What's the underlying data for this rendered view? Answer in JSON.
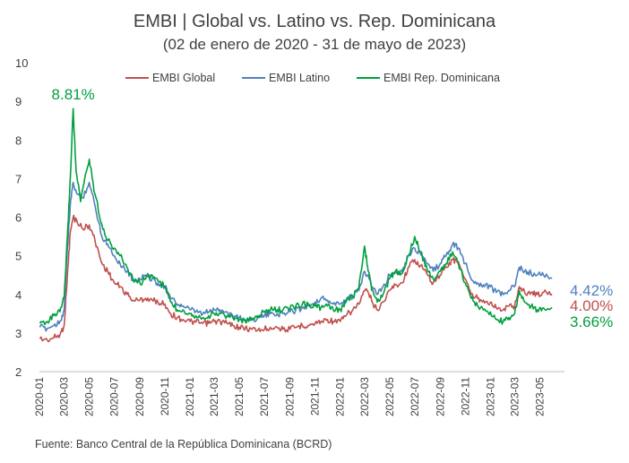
{
  "chart_data": {
    "type": "line",
    "title": "EMBI | Global vs. Latino vs. Rep. Dominicana",
    "subtitle": "(02 de enero de 2020 - 31 de mayo de 2023)",
    "source": "Fuente: Banco Central de la República Dominicana (BCRD)",
    "ylim": [
      2,
      10
    ],
    "yticks": [
      "2",
      "3",
      "4",
      "5",
      "6",
      "7",
      "8",
      "9",
      "10"
    ],
    "xlim": [
      "2020-01-01",
      "2023-06-30"
    ],
    "xticks": [
      "2020-01",
      "2020-03",
      "2020-05",
      "2020-07",
      "2020-09",
      "2020-11",
      "2021-01",
      "2021-03",
      "2021-05",
      "2021-07",
      "2021-09",
      "2021-11",
      "2022-01",
      "2022-03",
      "2022-05",
      "2022-07",
      "2022-09",
      "2022-11",
      "2023-01",
      "2023-03",
      "2023-05"
    ],
    "legend_position": "top-center",
    "grid": false,
    "series": [
      {
        "name": "EMBI Global",
        "color": "#C0504D",
        "end_label": "4.00%",
        "points": [
          [
            "2020-01-02",
            2.85
          ],
          [
            "2020-01-20",
            2.82
          ],
          [
            "2020-02-05",
            2.88
          ],
          [
            "2020-02-20",
            2.95
          ],
          [
            "2020-03-01",
            3.2
          ],
          [
            "2020-03-09",
            4.5
          ],
          [
            "2020-03-16",
            5.6
          ],
          [
            "2020-03-23",
            6.0
          ],
          [
            "2020-04-01",
            5.9
          ],
          [
            "2020-04-15",
            5.7
          ],
          [
            "2020-05-01",
            5.8
          ],
          [
            "2020-05-15",
            5.4
          ],
          [
            "2020-06-01",
            4.8
          ],
          [
            "2020-06-15",
            4.6
          ],
          [
            "2020-07-01",
            4.3
          ],
          [
            "2020-07-15",
            4.2
          ],
          [
            "2020-08-01",
            4.0
          ],
          [
            "2020-08-15",
            3.85
          ],
          [
            "2020-09-01",
            3.85
          ],
          [
            "2020-09-15",
            3.9
          ],
          [
            "2020-10-01",
            3.85
          ],
          [
            "2020-10-15",
            3.8
          ],
          [
            "2020-11-01",
            3.75
          ],
          [
            "2020-11-15",
            3.5
          ],
          [
            "2020-12-01",
            3.4
          ],
          [
            "2020-12-15",
            3.35
          ],
          [
            "2021-01-01",
            3.3
          ],
          [
            "2021-01-15",
            3.28
          ],
          [
            "2021-02-01",
            3.25
          ],
          [
            "2021-02-15",
            3.25
          ],
          [
            "2021-03-01",
            3.3
          ],
          [
            "2021-03-15",
            3.3
          ],
          [
            "2021-04-01",
            3.25
          ],
          [
            "2021-04-15",
            3.2
          ],
          [
            "2021-05-01",
            3.15
          ],
          [
            "2021-05-15",
            3.12
          ],
          [
            "2021-06-01",
            3.1
          ],
          [
            "2021-06-15",
            3.08
          ],
          [
            "2021-07-01",
            3.1
          ],
          [
            "2021-07-15",
            3.15
          ],
          [
            "2021-08-01",
            3.15
          ],
          [
            "2021-08-15",
            3.1
          ],
          [
            "2021-09-01",
            3.1
          ],
          [
            "2021-09-15",
            3.15
          ],
          [
            "2021-10-01",
            3.2
          ],
          [
            "2021-10-15",
            3.2
          ],
          [
            "2021-11-01",
            3.25
          ],
          [
            "2021-11-15",
            3.3
          ],
          [
            "2021-12-01",
            3.35
          ],
          [
            "2021-12-15",
            3.3
          ],
          [
            "2022-01-01",
            3.3
          ],
          [
            "2022-01-15",
            3.45
          ],
          [
            "2022-02-01",
            3.6
          ],
          [
            "2022-02-15",
            3.75
          ],
          [
            "2022-03-01",
            4.1
          ],
          [
            "2022-03-10",
            4.05
          ],
          [
            "2022-03-20",
            3.8
          ],
          [
            "2022-04-01",
            3.6
          ],
          [
            "2022-04-15",
            3.8
          ],
          [
            "2022-05-01",
            4.1
          ],
          [
            "2022-05-15",
            4.25
          ],
          [
            "2022-06-01",
            4.3
          ],
          [
            "2022-06-15",
            4.7
          ],
          [
            "2022-07-01",
            4.9
          ],
          [
            "2022-07-15",
            4.75
          ],
          [
            "2022-08-01",
            4.5
          ],
          [
            "2022-08-15",
            4.3
          ],
          [
            "2022-09-01",
            4.5
          ],
          [
            "2022-09-15",
            4.7
          ],
          [
            "2022-10-01",
            4.9
          ],
          [
            "2022-10-15",
            4.85
          ],
          [
            "2022-11-01",
            4.4
          ],
          [
            "2022-11-15",
            4.0
          ],
          [
            "2022-12-01",
            3.9
          ],
          [
            "2022-12-15",
            3.85
          ],
          [
            "2023-01-01",
            3.8
          ],
          [
            "2023-01-15",
            3.65
          ],
          [
            "2023-02-01",
            3.6
          ],
          [
            "2023-02-15",
            3.7
          ],
          [
            "2023-03-01",
            3.7
          ],
          [
            "2023-03-12",
            4.2
          ],
          [
            "2023-03-25",
            4.05
          ],
          [
            "2023-04-10",
            4.05
          ],
          [
            "2023-04-25",
            4.0
          ],
          [
            "2023-05-10",
            4.05
          ],
          [
            "2023-05-31",
            4.0
          ]
        ]
      },
      {
        "name": "EMBI Latino",
        "color": "#4F81BD",
        "end_label": "4.42%",
        "points": [
          [
            "2020-01-02",
            3.15
          ],
          [
            "2020-01-20",
            3.12
          ],
          [
            "2020-02-05",
            3.2
          ],
          [
            "2020-02-20",
            3.3
          ],
          [
            "2020-03-01",
            3.6
          ],
          [
            "2020-03-09",
            5.2
          ],
          [
            "2020-03-16",
            6.3
          ],
          [
            "2020-03-23",
            6.9
          ],
          [
            "2020-04-01",
            6.6
          ],
          [
            "2020-04-15",
            6.5
          ],
          [
            "2020-05-01",
            6.9
          ],
          [
            "2020-05-15",
            6.3
          ],
          [
            "2020-06-01",
            5.5
          ],
          [
            "2020-06-15",
            5.3
          ],
          [
            "2020-07-01",
            5.0
          ],
          [
            "2020-07-15",
            4.8
          ],
          [
            "2020-08-01",
            4.6
          ],
          [
            "2020-08-15",
            4.4
          ],
          [
            "2020-09-01",
            4.4
          ],
          [
            "2020-09-15",
            4.5
          ],
          [
            "2020-10-01",
            4.4
          ],
          [
            "2020-10-15",
            4.3
          ],
          [
            "2020-11-01",
            4.2
          ],
          [
            "2020-11-15",
            3.9
          ],
          [
            "2020-12-01",
            3.75
          ],
          [
            "2020-12-15",
            3.7
          ],
          [
            "2021-01-01",
            3.6
          ],
          [
            "2021-01-15",
            3.55
          ],
          [
            "2021-02-01",
            3.5
          ],
          [
            "2021-02-15",
            3.55
          ],
          [
            "2021-03-01",
            3.6
          ],
          [
            "2021-03-15",
            3.6
          ],
          [
            "2021-04-01",
            3.55
          ],
          [
            "2021-04-15",
            3.45
          ],
          [
            "2021-05-01",
            3.4
          ],
          [
            "2021-05-15",
            3.35
          ],
          [
            "2021-06-01",
            3.35
          ],
          [
            "2021-06-15",
            3.4
          ],
          [
            "2021-07-01",
            3.45
          ],
          [
            "2021-07-15",
            3.5
          ],
          [
            "2021-08-01",
            3.5
          ],
          [
            "2021-08-15",
            3.5
          ],
          [
            "2021-09-01",
            3.55
          ],
          [
            "2021-09-15",
            3.6
          ],
          [
            "2021-10-01",
            3.65
          ],
          [
            "2021-10-15",
            3.7
          ],
          [
            "2021-11-01",
            3.8
          ],
          [
            "2021-11-15",
            3.9
          ],
          [
            "2021-12-01",
            3.85
          ],
          [
            "2021-12-15",
            3.75
          ],
          [
            "2022-01-01",
            3.75
          ],
          [
            "2022-01-15",
            3.85
          ],
          [
            "2022-02-01",
            3.95
          ],
          [
            "2022-02-15",
            4.1
          ],
          [
            "2022-03-01",
            4.6
          ],
          [
            "2022-03-10",
            4.5
          ],
          [
            "2022-03-20",
            4.2
          ],
          [
            "2022-04-01",
            4.0
          ],
          [
            "2022-04-15",
            4.2
          ],
          [
            "2022-05-01",
            4.5
          ],
          [
            "2022-05-15",
            4.6
          ],
          [
            "2022-06-01",
            4.6
          ],
          [
            "2022-06-15",
            5.0
          ],
          [
            "2022-07-01",
            5.2
          ],
          [
            "2022-07-15",
            5.05
          ],
          [
            "2022-08-01",
            4.8
          ],
          [
            "2022-08-15",
            4.6
          ],
          [
            "2022-09-01",
            4.8
          ],
          [
            "2022-09-15",
            5.0
          ],
          [
            "2022-10-01",
            5.3
          ],
          [
            "2022-10-15",
            5.2
          ],
          [
            "2022-11-01",
            4.8
          ],
          [
            "2022-11-15",
            4.4
          ],
          [
            "2022-12-01",
            4.3
          ],
          [
            "2022-12-15",
            4.25
          ],
          [
            "2023-01-01",
            4.2
          ],
          [
            "2023-01-15",
            4.05
          ],
          [
            "2023-02-01",
            4.0
          ],
          [
            "2023-02-15",
            4.1
          ],
          [
            "2023-03-01",
            4.2
          ],
          [
            "2023-03-12",
            4.7
          ],
          [
            "2023-03-25",
            4.6
          ],
          [
            "2023-04-10",
            4.55
          ],
          [
            "2023-04-25",
            4.5
          ],
          [
            "2023-05-10",
            4.5
          ],
          [
            "2023-05-31",
            4.42
          ]
        ]
      },
      {
        "name": "EMBI Rep. Dominicana",
        "color": "#00A03E",
        "end_label": "3.66%",
        "peak_label": "8.81%",
        "peak_point": [
          "2020-03-23",
          8.81
        ],
        "points": [
          [
            "2020-01-02",
            3.25
          ],
          [
            "2020-01-20",
            3.3
          ],
          [
            "2020-02-05",
            3.45
          ],
          [
            "2020-02-20",
            3.55
          ],
          [
            "2020-03-01",
            3.9
          ],
          [
            "2020-03-09",
            5.5
          ],
          [
            "2020-03-16",
            7.0
          ],
          [
            "2020-03-23",
            8.81
          ],
          [
            "2020-03-30",
            7.2
          ],
          [
            "2020-04-10",
            6.4
          ],
          [
            "2020-04-20",
            7.0
          ],
          [
            "2020-05-01",
            7.5
          ],
          [
            "2020-05-15",
            6.6
          ],
          [
            "2020-06-01",
            5.8
          ],
          [
            "2020-06-15",
            5.4
          ],
          [
            "2020-07-01",
            5.2
          ],
          [
            "2020-07-15",
            5.0
          ],
          [
            "2020-08-01",
            4.7
          ],
          [
            "2020-08-15",
            4.4
          ],
          [
            "2020-09-01",
            4.3
          ],
          [
            "2020-09-15",
            4.4
          ],
          [
            "2020-10-01",
            4.5
          ],
          [
            "2020-10-15",
            4.35
          ],
          [
            "2020-11-01",
            4.2
          ],
          [
            "2020-11-15",
            3.8
          ],
          [
            "2020-12-01",
            3.6
          ],
          [
            "2020-12-15",
            3.6
          ],
          [
            "2021-01-01",
            3.5
          ],
          [
            "2021-01-15",
            3.45
          ],
          [
            "2021-02-01",
            3.4
          ],
          [
            "2021-02-15",
            3.45
          ],
          [
            "2021-03-01",
            3.5
          ],
          [
            "2021-03-15",
            3.5
          ],
          [
            "2021-04-01",
            3.45
          ],
          [
            "2021-04-15",
            3.4
          ],
          [
            "2021-05-01",
            3.35
          ],
          [
            "2021-05-15",
            3.3
          ],
          [
            "2021-06-01",
            3.35
          ],
          [
            "2021-06-15",
            3.45
          ],
          [
            "2021-07-01",
            3.55
          ],
          [
            "2021-07-15",
            3.6
          ],
          [
            "2021-08-01",
            3.6
          ],
          [
            "2021-08-15",
            3.6
          ],
          [
            "2021-09-01",
            3.65
          ],
          [
            "2021-09-15",
            3.7
          ],
          [
            "2021-10-01",
            3.75
          ],
          [
            "2021-10-15",
            3.75
          ],
          [
            "2021-11-01",
            3.7
          ],
          [
            "2021-11-15",
            3.65
          ],
          [
            "2021-12-01",
            3.7
          ],
          [
            "2021-12-15",
            3.6
          ],
          [
            "2022-01-01",
            3.6
          ],
          [
            "2022-01-15",
            3.8
          ],
          [
            "2022-02-01",
            3.95
          ],
          [
            "2022-02-15",
            4.15
          ],
          [
            "2022-03-01",
            5.25
          ],
          [
            "2022-03-10",
            4.6
          ],
          [
            "2022-03-20",
            4.1
          ],
          [
            "2022-04-01",
            3.8
          ],
          [
            "2022-04-15",
            4.0
          ],
          [
            "2022-05-01",
            4.4
          ],
          [
            "2022-05-15",
            4.6
          ],
          [
            "2022-06-01",
            4.55
          ],
          [
            "2022-06-15",
            5.0
          ],
          [
            "2022-07-01",
            5.5
          ],
          [
            "2022-07-15",
            5.1
          ],
          [
            "2022-08-01",
            4.6
          ],
          [
            "2022-08-15",
            4.4
          ],
          [
            "2022-09-01",
            4.6
          ],
          [
            "2022-09-15",
            4.8
          ],
          [
            "2022-10-01",
            5.1
          ],
          [
            "2022-10-15",
            4.8
          ],
          [
            "2022-11-01",
            4.3
          ],
          [
            "2022-11-15",
            3.9
          ],
          [
            "2022-12-01",
            3.7
          ],
          [
            "2022-12-15",
            3.6
          ],
          [
            "2023-01-01",
            3.55
          ],
          [
            "2023-01-15",
            3.35
          ],
          [
            "2023-02-01",
            3.3
          ],
          [
            "2023-02-15",
            3.4
          ],
          [
            "2023-03-01",
            3.5
          ],
          [
            "2023-03-12",
            4.1
          ],
          [
            "2023-03-25",
            3.8
          ],
          [
            "2023-04-10",
            3.7
          ],
          [
            "2023-04-25",
            3.6
          ],
          [
            "2023-05-10",
            3.65
          ],
          [
            "2023-05-31",
            3.66
          ]
        ]
      }
    ]
  }
}
